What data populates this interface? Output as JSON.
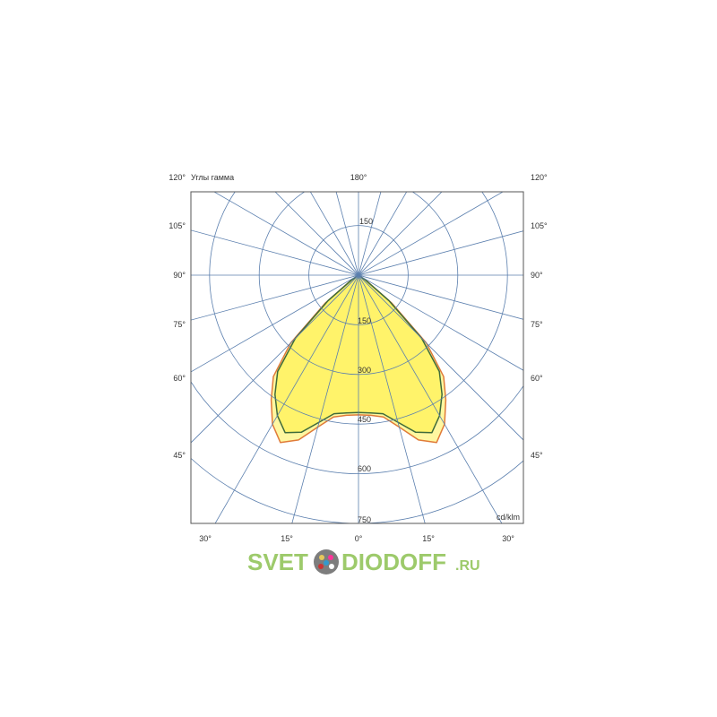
{
  "chart_data": {
    "type": "polar",
    "title_label": "Углы гамма",
    "unit_label": "cd/klm",
    "top_angle_label": "180°",
    "side_angle_labels": [
      "120°",
      "105°",
      "90°",
      "75°",
      "60°",
      "45°"
    ],
    "bottom_angle_labels": [
      "30°",
      "15°",
      "0°",
      "15°",
      "30°"
    ],
    "upper_ring_label": "150",
    "ring_labels": [
      "150",
      "300",
      "450",
      "600",
      "750"
    ],
    "rings": [
      150,
      300,
      450,
      600,
      750
    ],
    "rlim": [
      0,
      750
    ],
    "spoke_step_deg": 15,
    "grid": true,
    "series": [
      {
        "color": "#e07b39",
        "fill": "#fff7a0",
        "angles": [
          0,
          5,
          10,
          15,
          20,
          25,
          30,
          35,
          40,
          45,
          50,
          55,
          60
        ],
        "values": [
          422,
          425,
          435,
          475,
          530,
          558,
          520,
          460,
          400,
          290,
          130,
          30,
          0
        ]
      },
      {
        "color": "#3f6b3a",
        "fill": "#fff36a",
        "angles": [
          0,
          5,
          10,
          15,
          20,
          25,
          30,
          35,
          40,
          45,
          50,
          55,
          60
        ],
        "values": [
          415,
          418,
          425,
          460,
          505,
          525,
          490,
          440,
          380,
          270,
          120,
          25,
          0
        ]
      }
    ],
    "colors": {
      "grid": "#5b7fae",
      "frame": "#555555"
    }
  },
  "watermark": {
    "text_left": "SVET",
    "text_right": "DIODOFF",
    "suffix": ".RU"
  }
}
